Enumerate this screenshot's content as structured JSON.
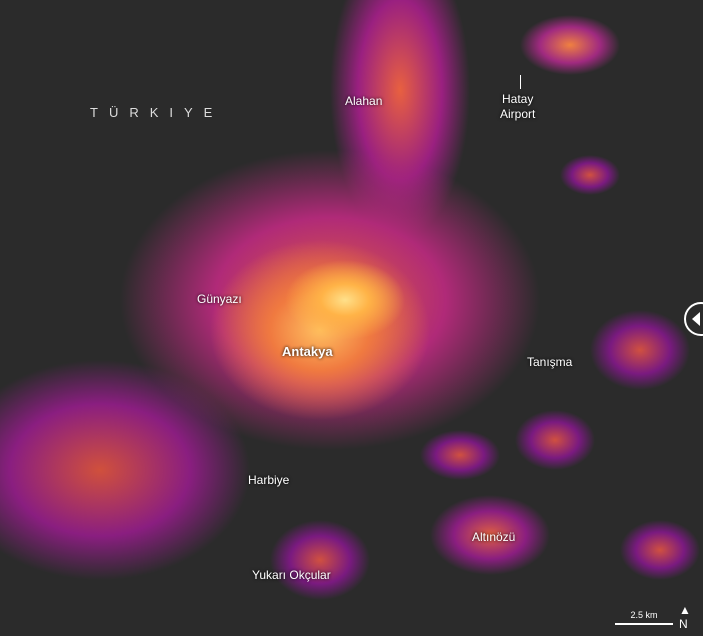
{
  "map": {
    "country_label": "TÜRKIYE",
    "places": {
      "alahan": "Alahan",
      "hatay_airport": "Hatay\nAirport",
      "gunyazi": "Günyazı",
      "antakya": "Antakya",
      "tanisma": "Tanışma",
      "harbiye": "Harbiye",
      "altinozu": "Altınözü",
      "yukari_okcular": "Yukarı Okçular"
    },
    "scale_label": "2.5 km",
    "north_label": "N",
    "colors": {
      "glow_bright": "#ffe08a",
      "glow_mid": "#f07a40",
      "glow_low": "#b02a78",
      "background": "#2b2b2b"
    }
  }
}
